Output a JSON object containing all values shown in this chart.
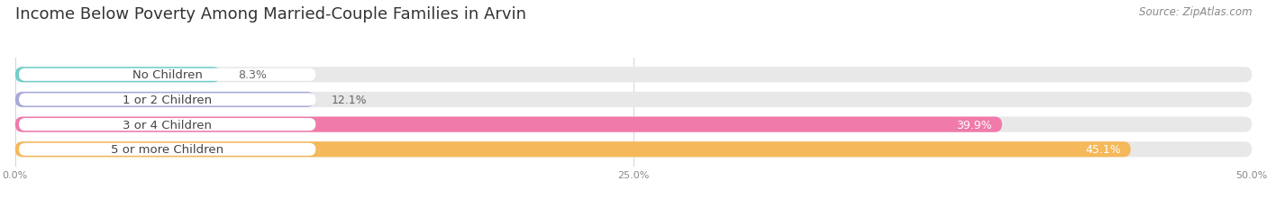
{
  "title": "Income Below Poverty Among Married-Couple Families in Arvin",
  "source": "Source: ZipAtlas.com",
  "categories": [
    "No Children",
    "1 or 2 Children",
    "3 or 4 Children",
    "5 or more Children"
  ],
  "values": [
    8.3,
    12.1,
    39.9,
    45.1
  ],
  "bar_colors": [
    "#72cfc9",
    "#a9a9d9",
    "#f07aaa",
    "#f5b85a"
  ],
  "bar_bg_color": "#e8e8e8",
  "xlim": [
    0,
    50
  ],
  "xticks": [
    0,
    25,
    50
  ],
  "xticklabels": [
    "0.0%",
    "25.0%",
    "50.0%"
  ],
  "title_fontsize": 13,
  "source_fontsize": 8.5,
  "cat_fontsize": 9.5,
  "val_fontsize": 9,
  "bar_height": 0.62,
  "background_color": "#ffffff",
  "label_bg_color": "#ffffff",
  "label_text_color": "#444444",
  "val_inside_color": "#ffffff",
  "val_outside_color": "#666666"
}
